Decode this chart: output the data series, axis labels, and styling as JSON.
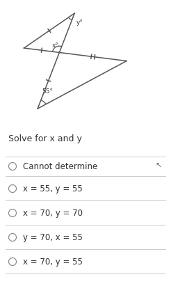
{
  "bg_color": "#ffffff",
  "question_text": "Solve for x and y",
  "options": [
    "Cannot determine",
    "x = 55, y = 55",
    "x = 70, y = 70",
    "y = 70, x = 55",
    "x = 70, y = 55"
  ],
  "angle_label": "55°",
  "x_label": "x°",
  "y_label": "y°",
  "fig_width": 2.46,
  "fig_height": 4.21,
  "dpi": 100,
  "line_color": "#555555",
  "text_color": "#333333",
  "separator_color": "#cccccc",
  "circle_color": "#888888",
  "question_fontsize": 9,
  "option_fontsize": 8.5
}
